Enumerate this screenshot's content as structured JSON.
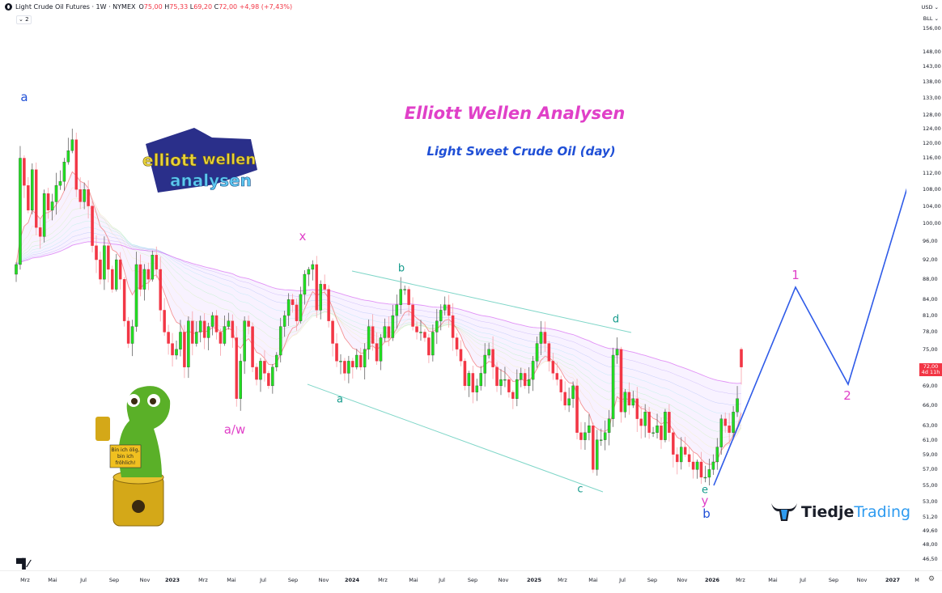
{
  "header": {
    "symbol_icon": "crude-oil-icon",
    "title": "Light Crude Oil Futures · 1W · NYMEX",
    "o_label": "O",
    "o": "75,00",
    "h_label": "H",
    "h": "75,33",
    "l_label": "L",
    "l": "69,20",
    "c_label": "C",
    "c": "72,00",
    "change": "+4,98 (+7,43%)",
    "indicator_toggle": "⌄ 2"
  },
  "axis_right": {
    "currency": "USD ⌄",
    "unit": "BLL ⌄",
    "ticks": [
      {
        "label": "156,00",
        "v": 156
      },
      {
        "label": "148,00",
        "v": 148
      },
      {
        "label": "143,00",
        "v": 143
      },
      {
        "label": "138,00",
        "v": 138
      },
      {
        "label": "133,00",
        "v": 133
      },
      {
        "label": "128,00",
        "v": 128
      },
      {
        "label": "124,00",
        "v": 124
      },
      {
        "label": "120,00",
        "v": 120
      },
      {
        "label": "116,00",
        "v": 116
      },
      {
        "label": "112,00",
        "v": 112
      },
      {
        "label": "108,00",
        "v": 108
      },
      {
        "label": "104,00",
        "v": 104
      },
      {
        "label": "100,00",
        "v": 100
      },
      {
        "label": "96,00",
        "v": 96
      },
      {
        "label": "92,00",
        "v": 92
      },
      {
        "label": "88,00",
        "v": 88
      },
      {
        "label": "84,00",
        "v": 84
      },
      {
        "label": "81,00",
        "v": 81
      },
      {
        "label": "78,00",
        "v": 78
      },
      {
        "label": "75,00",
        "v": 75
      },
      {
        "label": "69,00",
        "v": 69
      },
      {
        "label": "66,00",
        "v": 66
      },
      {
        "label": "63,00",
        "v": 63
      },
      {
        "label": "61,00",
        "v": 61
      },
      {
        "label": "59,00",
        "v": 59
      },
      {
        "label": "57,00",
        "v": 57
      },
      {
        "label": "55,00",
        "v": 55
      },
      {
        "label": "53,00",
        "v": 53
      },
      {
        "label": "51,20",
        "v": 51.2
      },
      {
        "label": "49,60",
        "v": 49.6
      },
      {
        "label": "48,00",
        "v": 48
      },
      {
        "label": "46,50",
        "v": 46.5
      }
    ],
    "last_price": "72,00",
    "countdown": "4d 11h",
    "scale": "log"
  },
  "axis_bottom": {
    "labels": [
      "Mrz",
      "Mai",
      "Jul",
      "Sep",
      "Nov",
      "2023",
      "Mrz",
      "Mai",
      "Jul",
      "Sep",
      "Nov",
      "2024",
      "Mrz",
      "Mai",
      "Jul",
      "Sep",
      "Nov",
      "2025",
      "Mrz",
      "Mai",
      "Jul",
      "Sep",
      "Nov",
      "2026",
      "Mrz",
      "Mai",
      "Jul",
      "Sep",
      "Nov",
      "2027",
      "M"
    ],
    "settings_icon": "gear-icon"
  },
  "annotations": {
    "title": "Elliott Wellen Analysen",
    "subtitle": "Light Sweet Crude Oil (day)",
    "waves": {
      "a_top": "a",
      "aw": "a/w",
      "x": "x",
      "b_tri": "b",
      "a_tri": "a",
      "c_tri": "c",
      "d_tri": "d",
      "e_tri": "e",
      "y": "y",
      "b_main": "b",
      "one": "1",
      "two": "2"
    }
  },
  "branding": {
    "logo_text": "elliott wellen analysen",
    "mascot_sign": "Bin ich ölig, bin ich fröhlich!",
    "tiedje_a": "Tiedje",
    "tiedje_b": "Trading",
    "tv_logo": "TV"
  },
  "colors": {
    "up": "#22dd22",
    "down": "#f23645",
    "wave_magenta": "#e040c8",
    "wave_teal": "#159b8c",
    "wave_blue": "#1f4fd6",
    "projection": "#2f5be8"
  },
  "chart_data": {
    "type": "candlestick",
    "timeframe": "1W",
    "last_candle": {
      "o": 75.0,
      "h": 75.33,
      "l": 69.2,
      "c": 72.0
    },
    "closes": [
      91,
      116,
      109,
      103,
      113,
      99,
      97,
      107,
      103,
      105,
      109,
      110,
      115,
      118,
      121,
      108,
      105,
      108,
      104,
      95,
      92,
      88,
      95,
      90,
      86,
      92,
      88,
      80,
      76,
      79,
      91,
      86,
      90,
      88,
      93,
      90,
      82,
      78,
      76,
      74,
      75,
      78,
      72,
      80,
      76,
      78,
      80,
      77,
      79,
      81,
      78,
      76,
      79,
      80,
      77,
      67,
      73,
      80,
      79,
      72,
      70,
      73,
      71,
      69,
      72,
      74,
      79,
      81,
      84,
      83,
      80,
      85,
      89,
      90,
      91,
      82,
      87,
      86,
      80,
      76,
      73,
      73,
      71,
      73,
      72,
      74,
      72,
      75,
      79,
      76,
      73,
      77,
      79,
      77,
      81,
      83,
      86,
      86,
      83,
      79,
      78,
      78,
      77,
      74,
      78,
      80,
      82,
      83,
      81,
      77,
      75,
      73,
      69,
      71,
      68,
      69,
      71,
      74,
      75,
      72,
      69,
      70,
      70,
      68,
      67,
      70,
      71,
      69,
      70,
      73,
      76,
      78,
      76,
      73,
      71,
      70,
      68,
      66,
      67,
      69,
      62,
      61,
      62,
      63,
      57,
      61,
      61,
      62,
      64,
      74,
      75,
      65,
      68,
      66,
      67,
      64,
      63,
      65,
      62,
      62,
      63,
      61,
      65,
      62,
      59,
      58,
      60,
      59,
      58,
      57,
      58,
      56,
      56,
      57,
      58,
      60,
      64,
      63,
      62,
      65,
      67,
      72
    ]
  }
}
